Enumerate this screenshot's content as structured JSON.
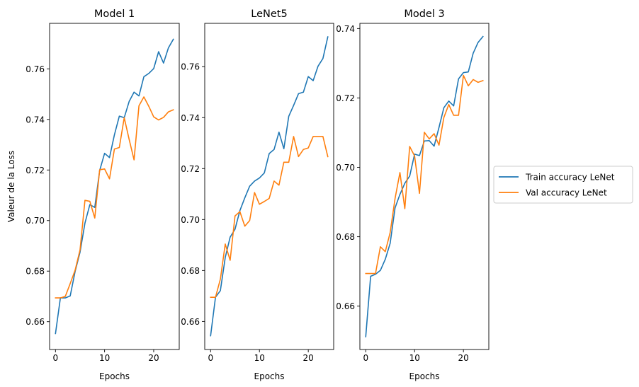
{
  "chart_data": [
    {
      "type": "line",
      "title": "Model 1",
      "xlabel": "Epochs",
      "ylabel": "Valeur de la Loss",
      "xlim": [
        -1.2,
        25.2
      ],
      "ylim": [
        0.649,
        0.778
      ],
      "xticks": [
        0,
        10,
        20
      ],
      "yticks": [
        0.66,
        0.68,
        0.7,
        0.72,
        0.74,
        0.76
      ],
      "ytick_labels": [
        "0.66",
        "0.68",
        "0.70",
        "0.72",
        "0.74",
        "0.76"
      ],
      "x": [
        0,
        1,
        2,
        3,
        4,
        5,
        6,
        7,
        8,
        9,
        10,
        11,
        12,
        13,
        14,
        15,
        16,
        17,
        18,
        19,
        20,
        21,
        22,
        23,
        24
      ],
      "series": [
        {
          "name": "Train accuracy LeNet",
          "color": "#1f77b4",
          "values": [
            0.6553,
            0.6694,
            0.6694,
            0.6702,
            0.6799,
            0.6875,
            0.699,
            0.7063,
            0.7052,
            0.7198,
            0.7266,
            0.7249,
            0.7339,
            0.7413,
            0.7407,
            0.7471,
            0.7508,
            0.7493,
            0.7569,
            0.7582,
            0.7601,
            0.7668,
            0.7623,
            0.7683,
            0.7717
          ]
        },
        {
          "name": "Val accuracy LeNet",
          "color": "#ff7f0e",
          "values": [
            0.6694,
            0.6694,
            0.67,
            0.6751,
            0.6804,
            0.6884,
            0.708,
            0.7076,
            0.701,
            0.7201,
            0.7204,
            0.7165,
            0.7283,
            0.7289,
            0.7407,
            0.7321,
            0.724,
            0.7454,
            0.7489,
            0.7452,
            0.741,
            0.7398,
            0.7408,
            0.743,
            0.7438
          ]
        }
      ]
    },
    {
      "type": "line",
      "title": "LeNet5",
      "xlabel": "Epochs",
      "ylabel": "",
      "xlim": [
        -1.2,
        25.2
      ],
      "ylim": [
        0.649,
        0.777
      ],
      "xticks": [
        0,
        10,
        20
      ],
      "yticks": [
        0.66,
        0.68,
        0.7,
        0.72,
        0.74,
        0.76
      ],
      "ytick_labels": [
        "0.66",
        "0.68",
        "0.70",
        "0.72",
        "0.74",
        "0.76"
      ],
      "x": [
        0,
        1,
        2,
        3,
        4,
        5,
        6,
        7,
        8,
        9,
        10,
        11,
        12,
        13,
        14,
        15,
        16,
        17,
        18,
        19,
        20,
        21,
        22,
        23,
        24
      ],
      "series": [
        {
          "name": "Train accuracy LeNet",
          "color": "#1f77b4",
          "values": [
            0.6544,
            0.6695,
            0.6721,
            0.6851,
            0.6931,
            0.6962,
            0.7035,
            0.7085,
            0.7131,
            0.7151,
            0.7163,
            0.7183,
            0.7259,
            0.7275,
            0.7343,
            0.7278,
            0.7405,
            0.7448,
            0.7494,
            0.75,
            0.7561,
            0.7545,
            0.7602,
            0.7632,
            0.7717
          ]
        },
        {
          "name": "Val accuracy LeNet",
          "color": "#ff7f0e",
          "values": [
            0.6695,
            0.6695,
            0.6766,
            0.6904,
            0.684,
            0.7014,
            0.7031,
            0.6974,
            0.6996,
            0.7106,
            0.706,
            0.7071,
            0.7083,
            0.7151,
            0.7135,
            0.7225,
            0.7225,
            0.7326,
            0.7247,
            0.7275,
            0.7281,
            0.7326,
            0.7326,
            0.7326,
            0.7247
          ]
        }
      ]
    },
    {
      "type": "line",
      "title": "Model 3",
      "xlabel": "Epochs",
      "ylabel": "",
      "xlim": [
        -1.2,
        25.2
      ],
      "ylim": [
        0.6475,
        0.7415
      ],
      "xticks": [
        0,
        10,
        20
      ],
      "yticks": [
        0.66,
        0.68,
        0.7,
        0.72,
        0.74
      ],
      "ytick_labels": [
        "0.66",
        "0.68",
        "0.70",
        "0.72",
        "0.74"
      ],
      "x": [
        0,
        1,
        2,
        3,
        4,
        5,
        6,
        7,
        8,
        9,
        10,
        11,
        12,
        13,
        14,
        15,
        16,
        17,
        18,
        19,
        20,
        21,
        22,
        23,
        24
      ],
      "series": [
        {
          "name": "Train accuracy LeNet",
          "color": "#1f77b4",
          "values": [
            0.6512,
            0.6686,
            0.6692,
            0.6703,
            0.6735,
            0.6781,
            0.6883,
            0.6922,
            0.6954,
            0.6975,
            0.7038,
            0.7034,
            0.7076,
            0.7077,
            0.7061,
            0.7115,
            0.7172,
            0.7191,
            0.7177,
            0.7255,
            0.7273,
            0.7275,
            0.7329,
            0.736,
            0.7377
          ]
        },
        {
          "name": "Val accuracy LeNet",
          "color": "#ff7f0e",
          "values": [
            0.6694,
            0.6694,
            0.6694,
            0.6771,
            0.6757,
            0.6812,
            0.691,
            0.6985,
            0.6881,
            0.706,
            0.7033,
            0.6925,
            0.7101,
            0.7082,
            0.7097,
            0.7064,
            0.7144,
            0.7181,
            0.715,
            0.715,
            0.7265,
            0.7235,
            0.7253,
            0.7245,
            0.725
          ]
        }
      ]
    }
  ],
  "legend": {
    "placement": "right",
    "entries": [
      {
        "label": "Train accuracy LeNet",
        "color": "#1f77b4"
      },
      {
        "label": "Val accuracy LeNet",
        "color": "#ff7f0e"
      }
    ]
  }
}
